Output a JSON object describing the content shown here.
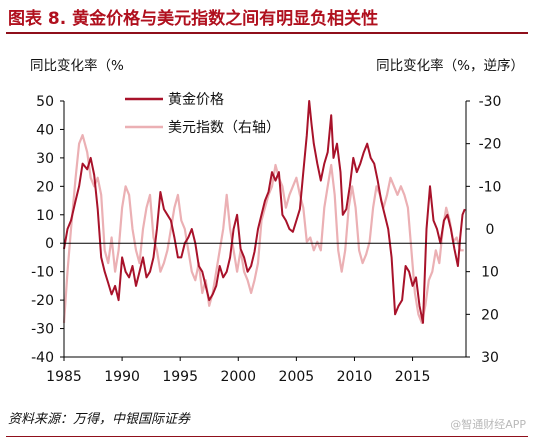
{
  "figure": {
    "title": "图表 8. 黄金价格与美元指数之间有明显负相关性",
    "left_axis_title": "同比变化率（%",
    "right_axis_title": "同比变化率（%，逆序）",
    "source": "资料来源：万得，中银国际证券",
    "watermark": "@智通财经APP"
  },
  "colors": {
    "title": "#b0101e",
    "gold": "#a8122a",
    "dollar": "#ebb0b4"
  },
  "chart_data": {
    "type": "line",
    "title": "图表 8. 黄金价格与美元指数之间有明显负相关性",
    "xlabel": "",
    "ylabel": "同比变化率（%",
    "y2label": "同比变化率（%，逆序）",
    "xlim": [
      1985.0,
      2019.6
    ],
    "ylim": [
      -40,
      50
    ],
    "y2lim": [
      30,
      -30
    ],
    "y2_reversed": true,
    "x_ticks": [
      1985,
      1990,
      1995,
      2000,
      2005,
      2010,
      2015
    ],
    "y_ticks": [
      50,
      40,
      30,
      20,
      10,
      0,
      -10,
      -20,
      -30,
      -40
    ],
    "y2_ticks": [
      -30,
      -20,
      -10,
      0,
      10,
      20,
      30
    ],
    "y2_tick_labels": [
      "-30",
      "-20",
      "-10",
      "0",
      "10",
      "20",
      "30"
    ],
    "legend_position": "top-left",
    "series": [
      {
        "name": "黄金价格",
        "axis": "left",
        "x": [
          1985.0,
          1985.3,
          1985.6,
          1986.0,
          1986.3,
          1986.6,
          1987.0,
          1987.3,
          1987.6,
          1987.9,
          1988.2,
          1988.5,
          1988.8,
          1989.1,
          1989.4,
          1989.7,
          1990.0,
          1990.3,
          1990.6,
          1990.9,
          1991.2,
          1991.5,
          1991.8,
          1992.1,
          1992.4,
          1992.7,
          1993.0,
          1993.3,
          1993.6,
          1993.9,
          1994.2,
          1994.5,
          1994.8,
          1995.1,
          1995.4,
          1995.7,
          1996.0,
          1996.3,
          1996.6,
          1996.9,
          1997.2,
          1997.5,
          1997.8,
          1998.1,
          1998.4,
          1998.7,
          1999.0,
          1999.3,
          1999.6,
          1999.9,
          2000.2,
          2000.5,
          2000.8,
          2001.1,
          2001.4,
          2001.7,
          2002.0,
          2002.3,
          2002.6,
          2002.9,
          2003.2,
          2003.5,
          2003.8,
          2004.1,
          2004.4,
          2004.7,
          2005.0,
          2005.3,
          2005.6,
          2005.9,
          2006.1,
          2006.3,
          2006.5,
          2006.8,
          2007.1,
          2007.4,
          2007.7,
          2008.0,
          2008.2,
          2008.5,
          2008.8,
          2009.0,
          2009.3,
          2009.6,
          2009.9,
          2010.2,
          2010.5,
          2010.8,
          2011.1,
          2011.4,
          2011.7,
          2012.0,
          2012.3,
          2012.6,
          2012.9,
          2013.2,
          2013.5,
          2013.8,
          2014.1,
          2014.4,
          2014.7,
          2015.0,
          2015.3,
          2015.6,
          2015.9,
          2016.2,
          2016.5,
          2016.8,
          2017.1,
          2017.4,
          2017.7,
          2018.0,
          2018.3,
          2018.6,
          2018.9,
          2019.1,
          2019.3,
          2019.5
        ],
        "values": [
          -2,
          5,
          8,
          15,
          20,
          28,
          26,
          30,
          24,
          12,
          -5,
          -10,
          -14,
          -18,
          -15,
          -20,
          -5,
          -10,
          -12,
          -8,
          -15,
          -10,
          -5,
          -12,
          -10,
          -5,
          5,
          18,
          12,
          10,
          8,
          2,
          -5,
          -5,
          0,
          2,
          5,
          0,
          -8,
          -10,
          -15,
          -20,
          -18,
          -15,
          -8,
          -12,
          -10,
          -5,
          5,
          10,
          -2,
          -5,
          -10,
          -8,
          -3,
          5,
          10,
          15,
          18,
          25,
          22,
          25,
          10,
          8,
          5,
          4,
          8,
          12,
          25,
          38,
          50,
          42,
          35,
          28,
          22,
          28,
          32,
          45,
          30,
          35,
          25,
          10,
          12,
          20,
          30,
          25,
          28,
          32,
          35,
          30,
          28,
          22,
          15,
          10,
          5,
          -5,
          -25,
          -22,
          -20,
          -8,
          -10,
          -15,
          -12,
          -22,
          -28,
          5,
          20,
          8,
          5,
          0,
          8,
          10,
          5,
          -2,
          -8,
          2,
          10,
          12
        ]
      },
      {
        "name": "美元指数（右轴）",
        "axis": "right",
        "x": [
          1985.0,
          1985.3,
          1985.6,
          1986.0,
          1986.3,
          1986.6,
          1987.0,
          1987.3,
          1987.6,
          1987.9,
          1988.2,
          1988.5,
          1988.8,
          1989.1,
          1989.4,
          1989.7,
          1990.0,
          1990.3,
          1990.6,
          1990.9,
          1991.2,
          1991.5,
          1991.8,
          1992.1,
          1992.4,
          1992.7,
          1993.0,
          1993.3,
          1993.6,
          1993.9,
          1994.2,
          1994.5,
          1994.8,
          1995.1,
          1995.4,
          1995.7,
          1996.0,
          1996.3,
          1996.6,
          1996.9,
          1997.2,
          1997.5,
          1997.8,
          1998.1,
          1998.4,
          1998.7,
          1999.0,
          1999.3,
          1999.6,
          1999.9,
          2000.2,
          2000.5,
          2000.8,
          2001.1,
          2001.4,
          2001.7,
          2002.0,
          2002.3,
          2002.6,
          2002.9,
          2003.2,
          2003.5,
          2003.8,
          2004.1,
          2004.4,
          2004.7,
          2005.0,
          2005.3,
          2005.6,
          2005.9,
          2006.2,
          2006.5,
          2006.8,
          2007.1,
          2007.4,
          2007.7,
          2008.0,
          2008.3,
          2008.6,
          2008.9,
          2009.2,
          2009.5,
          2009.8,
          2010.1,
          2010.4,
          2010.7,
          2011.0,
          2011.3,
          2011.6,
          2011.9,
          2012.2,
          2012.5,
          2012.8,
          2013.1,
          2013.4,
          2013.7,
          2014.0,
          2014.3,
          2014.6,
          2014.9,
          2015.2,
          2015.5,
          2015.8,
          2016.1,
          2016.4,
          2016.7,
          2017.0,
          2017.3,
          2017.6,
          2017.9,
          2018.2,
          2018.5,
          2018.8,
          2019.1,
          2019.4
        ],
        "values": [
          22,
          10,
          0,
          -12,
          -20,
          -22,
          -18,
          -12,
          -10,
          -12,
          -8,
          5,
          8,
          2,
          10,
          5,
          -5,
          -10,
          -8,
          0,
          5,
          8,
          0,
          -5,
          -8,
          2,
          5,
          10,
          8,
          5,
          0,
          -5,
          -8,
          -2,
          0,
          5,
          10,
          12,
          8,
          15,
          12,
          18,
          15,
          10,
          5,
          0,
          -8,
          0,
          5,
          10,
          5,
          10,
          12,
          15,
          12,
          8,
          -2,
          -5,
          -8,
          -10,
          -15,
          -12,
          -10,
          -5,
          -8,
          -10,
          -12,
          -8,
          -5,
          3,
          2,
          5,
          3,
          5,
          -5,
          -10,
          -15,
          -8,
          5,
          10,
          5,
          -5,
          -10,
          -5,
          5,
          8,
          6,
          3,
          -5,
          -10,
          -8,
          -5,
          -8,
          -12,
          -10,
          -8,
          -10,
          -8,
          -5,
          5,
          15,
          20,
          22,
          18,
          12,
          10,
          5,
          8,
          0,
          -5,
          -2,
          3,
          2,
          5,
          5
        ]
      }
    ]
  }
}
